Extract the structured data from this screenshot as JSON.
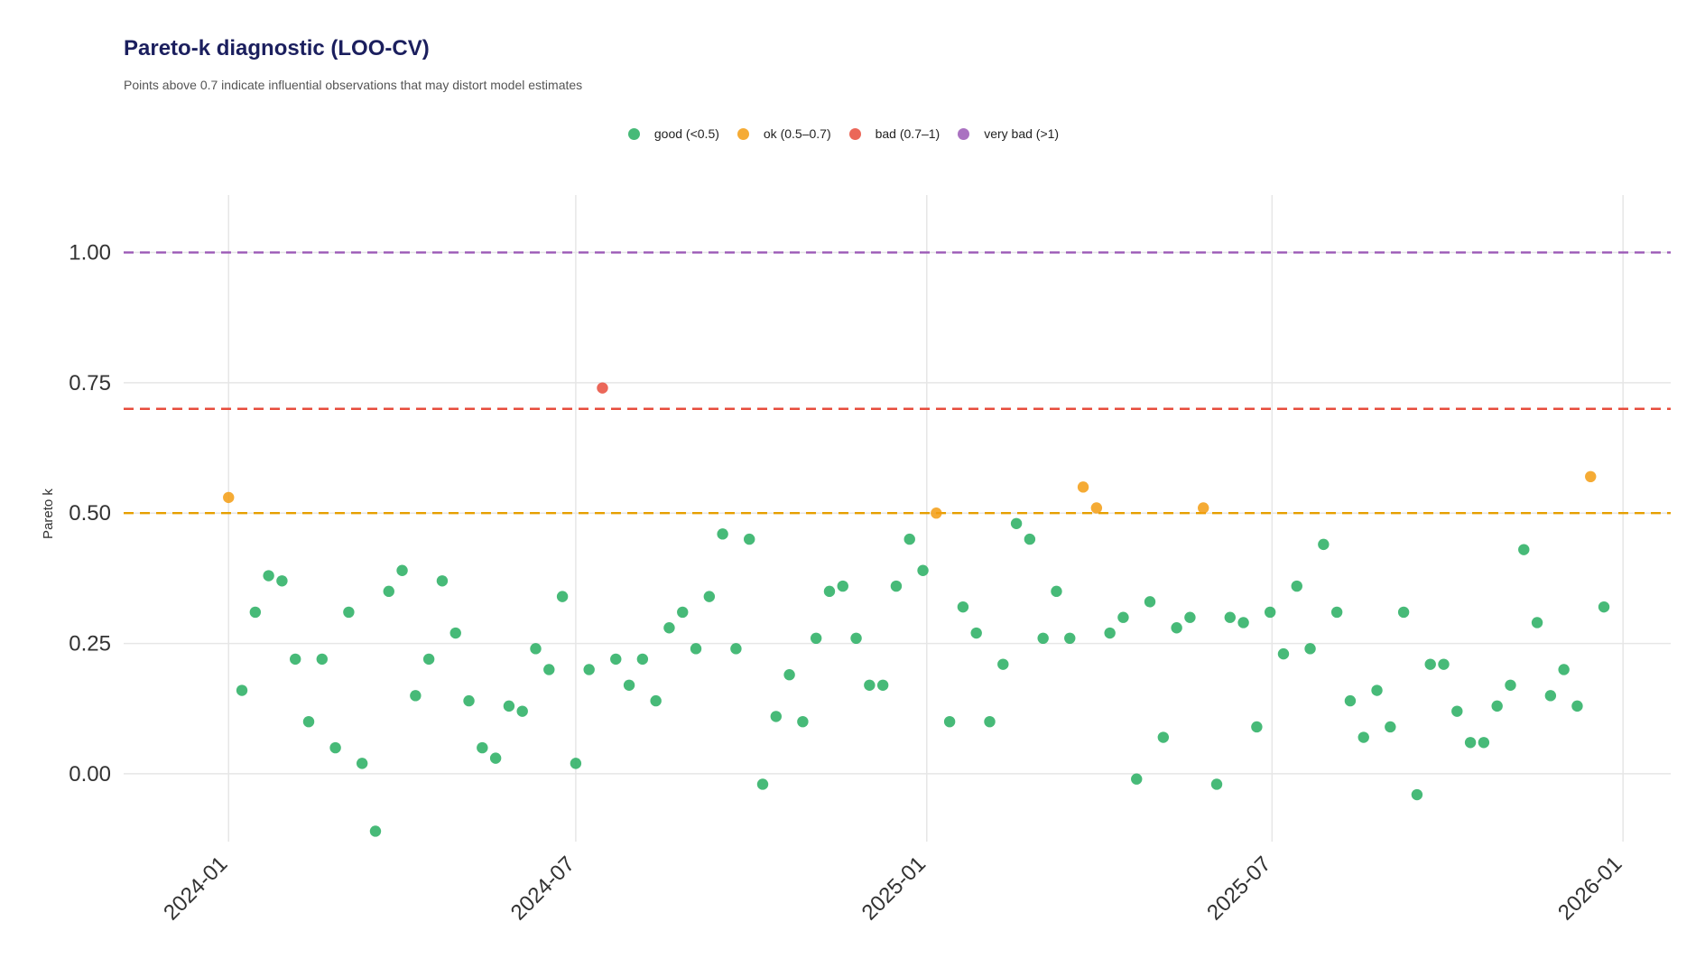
{
  "chart_data": {
    "type": "scatter",
    "title": "Pareto-k diagnostic (LOO-CV)",
    "subtitle": "Points above 0.7 indicate influential observations that may distort model estimates",
    "xlabel": "",
    "ylabel": "Pareto k",
    "ylim": [
      -0.13,
      1.11
    ],
    "xlim": [
      "2023-11-07",
      "2026-01-26"
    ],
    "y_ticks": [
      0.0,
      0.25,
      0.5,
      0.75,
      1.0
    ],
    "y_tick_labels": [
      "0.00",
      "0.25",
      "0.50",
      "0.75",
      "1.00"
    ],
    "x_ticks": [
      "2024-01-01",
      "2024-07-01",
      "2025-01-01",
      "2025-07-01",
      "2026-01-01"
    ],
    "x_tick_labels": [
      "2024-01",
      "2024-07",
      "2025-01",
      "2025-07",
      "2026-01"
    ],
    "grid": true,
    "legend_position": "top",
    "legend": [
      {
        "label": "good (<0.5)",
        "color": "#27ae60"
      },
      {
        "label": "ok (0.5–0.7)",
        "color": "#f39c12"
      },
      {
        "label": "bad (0.7–1)",
        "color": "#e74c3c"
      },
      {
        "label": "very bad (>1)",
        "color": "#9b59b6"
      }
    ],
    "thresholds": [
      {
        "y": 0.5,
        "color": "#e69f00"
      },
      {
        "y": 0.7,
        "color": "#e74c3c"
      },
      {
        "y": 1.0,
        "color": "#9b59b6"
      }
    ],
    "points": [
      {
        "x": "2024-01-01",
        "y": 0.53
      },
      {
        "x": "2024-01-08",
        "y": 0.16
      },
      {
        "x": "2024-01-15",
        "y": 0.31
      },
      {
        "x": "2024-01-22",
        "y": 0.38
      },
      {
        "x": "2024-01-29",
        "y": 0.37
      },
      {
        "x": "2024-02-05",
        "y": 0.22
      },
      {
        "x": "2024-02-12",
        "y": 0.1
      },
      {
        "x": "2024-02-19",
        "y": 0.22
      },
      {
        "x": "2024-02-26",
        "y": 0.05
      },
      {
        "x": "2024-03-04",
        "y": 0.31
      },
      {
        "x": "2024-03-11",
        "y": 0.02
      },
      {
        "x": "2024-03-18",
        "y": -0.11
      },
      {
        "x": "2024-03-25",
        "y": 0.35
      },
      {
        "x": "2024-04-01",
        "y": 0.39
      },
      {
        "x": "2024-04-08",
        "y": 0.15
      },
      {
        "x": "2024-04-15",
        "y": 0.22
      },
      {
        "x": "2024-04-22",
        "y": 0.37
      },
      {
        "x": "2024-04-29",
        "y": 0.27
      },
      {
        "x": "2024-05-06",
        "y": 0.14
      },
      {
        "x": "2024-05-13",
        "y": 0.05
      },
      {
        "x": "2024-05-20",
        "y": 0.03
      },
      {
        "x": "2024-05-27",
        "y": 0.13
      },
      {
        "x": "2024-06-03",
        "y": 0.12
      },
      {
        "x": "2024-06-10",
        "y": 0.24
      },
      {
        "x": "2024-06-17",
        "y": 0.2
      },
      {
        "x": "2024-06-24",
        "y": 0.34
      },
      {
        "x": "2024-07-01",
        "y": 0.02
      },
      {
        "x": "2024-07-08",
        "y": 0.2
      },
      {
        "x": "2024-07-15",
        "y": 0.74
      },
      {
        "x": "2024-07-22",
        "y": 0.22
      },
      {
        "x": "2024-07-29",
        "y": 0.17
      },
      {
        "x": "2024-08-05",
        "y": 0.22
      },
      {
        "x": "2024-08-12",
        "y": 0.14
      },
      {
        "x": "2024-08-19",
        "y": 0.28
      },
      {
        "x": "2024-08-26",
        "y": 0.31
      },
      {
        "x": "2024-09-02",
        "y": 0.24
      },
      {
        "x": "2024-09-09",
        "y": 0.34
      },
      {
        "x": "2024-09-16",
        "y": 0.46
      },
      {
        "x": "2024-09-23",
        "y": 0.24
      },
      {
        "x": "2024-09-30",
        "y": 0.45
      },
      {
        "x": "2024-10-07",
        "y": -0.02
      },
      {
        "x": "2024-10-14",
        "y": 0.11
      },
      {
        "x": "2024-10-21",
        "y": 0.19
      },
      {
        "x": "2024-10-28",
        "y": 0.1
      },
      {
        "x": "2024-11-04",
        "y": 0.26
      },
      {
        "x": "2024-11-11",
        "y": 0.35
      },
      {
        "x": "2024-11-18",
        "y": 0.36
      },
      {
        "x": "2024-11-25",
        "y": 0.26
      },
      {
        "x": "2024-12-02",
        "y": 0.17
      },
      {
        "x": "2024-12-09",
        "y": 0.17
      },
      {
        "x": "2024-12-16",
        "y": 0.36
      },
      {
        "x": "2024-12-23",
        "y": 0.45
      },
      {
        "x": "2024-12-30",
        "y": 0.39
      },
      {
        "x": "2025-01-06",
        "y": 0.5
      },
      {
        "x": "2025-01-13",
        "y": 0.1
      },
      {
        "x": "2025-01-20",
        "y": 0.32
      },
      {
        "x": "2025-01-27",
        "y": 0.27
      },
      {
        "x": "2025-02-03",
        "y": 0.1
      },
      {
        "x": "2025-02-10",
        "y": 0.21
      },
      {
        "x": "2025-02-17",
        "y": 0.48
      },
      {
        "x": "2025-02-24",
        "y": 0.45
      },
      {
        "x": "2025-03-03",
        "y": 0.26
      },
      {
        "x": "2025-03-10",
        "y": 0.35
      },
      {
        "x": "2025-03-17",
        "y": 0.26
      },
      {
        "x": "2025-03-24",
        "y": 0.55
      },
      {
        "x": "2025-03-31",
        "y": 0.51
      },
      {
        "x": "2025-04-07",
        "y": 0.27
      },
      {
        "x": "2025-04-14",
        "y": 0.3
      },
      {
        "x": "2025-04-21",
        "y": -0.01
      },
      {
        "x": "2025-04-28",
        "y": 0.33
      },
      {
        "x": "2025-05-05",
        "y": 0.07
      },
      {
        "x": "2025-05-12",
        "y": 0.28
      },
      {
        "x": "2025-05-19",
        "y": 0.3
      },
      {
        "x": "2025-05-26",
        "y": 0.51
      },
      {
        "x": "2025-06-02",
        "y": -0.02
      },
      {
        "x": "2025-06-09",
        "y": 0.3
      },
      {
        "x": "2025-06-16",
        "y": 0.29
      },
      {
        "x": "2025-06-23",
        "y": 0.09
      },
      {
        "x": "2025-06-30",
        "y": 0.31
      },
      {
        "x": "2025-07-07",
        "y": 0.23
      },
      {
        "x": "2025-07-14",
        "y": 0.36
      },
      {
        "x": "2025-07-21",
        "y": 0.24
      },
      {
        "x": "2025-07-28",
        "y": 0.44
      },
      {
        "x": "2025-08-04",
        "y": 0.31
      },
      {
        "x": "2025-08-11",
        "y": 0.14
      },
      {
        "x": "2025-08-18",
        "y": 0.07
      },
      {
        "x": "2025-08-25",
        "y": 0.16
      },
      {
        "x": "2025-09-01",
        "y": 0.09
      },
      {
        "x": "2025-09-08",
        "y": 0.31
      },
      {
        "x": "2025-09-15",
        "y": -0.04
      },
      {
        "x": "2025-09-22",
        "y": 0.21
      },
      {
        "x": "2025-09-29",
        "y": 0.21
      },
      {
        "x": "2025-10-06",
        "y": 0.12
      },
      {
        "x": "2025-10-13",
        "y": 0.06
      },
      {
        "x": "2025-10-20",
        "y": 0.06
      },
      {
        "x": "2025-10-27",
        "y": 0.13
      },
      {
        "x": "2025-11-03",
        "y": 0.17
      },
      {
        "x": "2025-11-10",
        "y": 0.43
      },
      {
        "x": "2025-11-17",
        "y": 0.29
      },
      {
        "x": "2025-11-24",
        "y": 0.15
      },
      {
        "x": "2025-12-01",
        "y": 0.2
      },
      {
        "x": "2025-12-08",
        "y": 0.13
      },
      {
        "x": "2025-12-15",
        "y": 0.57
      },
      {
        "x": "2025-12-22",
        "y": 0.32
      }
    ]
  }
}
